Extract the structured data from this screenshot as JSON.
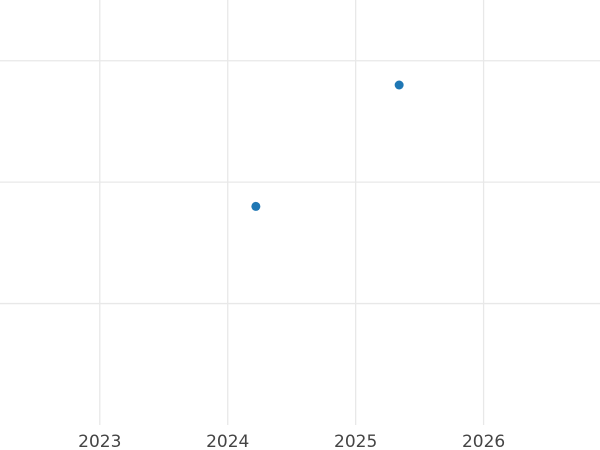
{
  "chart_data": {
    "type": "scatter",
    "title": "",
    "xlabel": "",
    "ylabel": "",
    "x_ticks": [
      "2023",
      "2024",
      "2025",
      "2026"
    ],
    "x_tick_values": [
      2023,
      2024,
      2025,
      2026
    ],
    "y_gridlines": [
      1,
      2,
      3
    ],
    "xlim": [
      2022.22,
      2026.91
    ],
    "ylim": [
      0,
      3.5
    ],
    "grid": true,
    "points": [
      {
        "x": 2024.22,
        "y": 1.8
      },
      {
        "x": 2025.34,
        "y": 2.8
      }
    ],
    "marker_color": "#1f77b4"
  }
}
